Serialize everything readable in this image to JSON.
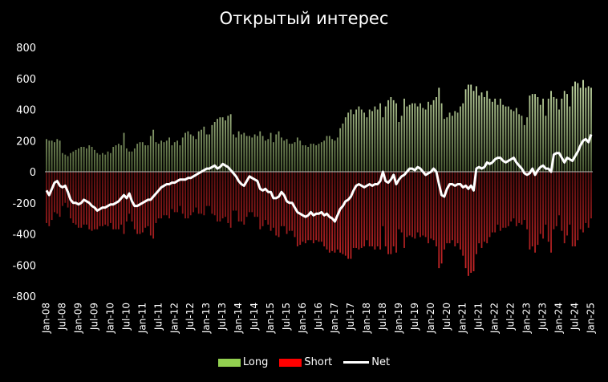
{
  "chart_data": {
    "type": "bar",
    "title": "Открытый интерес",
    "xlabel": "",
    "ylabel": "",
    "ylim": [
      -800,
      800
    ],
    "yticks": [
      "800",
      "600",
      "400",
      "200",
      "0",
      "-200",
      "-400",
      "-600",
      "-800"
    ],
    "ytick_values": [
      800,
      600,
      400,
      200,
      0,
      -200,
      -400,
      -600,
      -800
    ],
    "start": "Jan-08",
    "frequency": "monthly",
    "xtick_labels": [
      "Jan-08",
      "Jul-08",
      "Jan-09",
      "Jul-09",
      "Jan-10",
      "Jul-10",
      "Jan-11",
      "Jul-11",
      "Jan-12",
      "Jul-12",
      "Jan-13",
      "Jul-13",
      "Jan-14",
      "Jul-14",
      "Jan-15",
      "Jul-15",
      "Jan-16",
      "Jul-16",
      "Jan-17",
      "Jul-17",
      "Jan-18",
      "Jul-18",
      "Jan-19",
      "Jul-19",
      "Jan-20",
      "Jul-20",
      "Jan-21",
      "Jul-21",
      "Jan-22",
      "Jul-22",
      "Jan-23",
      "Jul-23",
      "Jan-24",
      "Jul-24",
      "Jan-25"
    ],
    "legend_position": "bottom",
    "colors": {
      "long": "#92d050",
      "short": "#ff0000",
      "net": "#ffffff"
    },
    "series": [
      {
        "name": "Long",
        "type": "bar",
        "values": [
          210,
          200,
          200,
          190,
          210,
          200,
          120,
          110,
          100,
          120,
          130,
          140,
          150,
          160,
          160,
          150,
          170,
          160,
          140,
          120,
          110,
          120,
          110,
          130,
          120,
          160,
          170,
          180,
          170,
          250,
          150,
          130,
          130,
          150,
          180,
          190,
          190,
          170,
          170,
          230,
          270,
          190,
          180,
          200,
          190,
          200,
          220,
          170,
          190,
          200,
          170,
          220,
          250,
          260,
          240,
          230,
          210,
          260,
          270,
          290,
          240,
          240,
          300,
          320,
          340,
          350,
          350,
          330,
          360,
          370,
          240,
          220,
          260,
          240,
          250,
          230,
          230,
          220,
          240,
          230,
          260,
          230,
          200,
          210,
          250,
          190,
          240,
          260,
          220,
          200,
          210,
          180,
          180,
          190,
          220,
          200,
          170,
          170,
          160,
          180,
          180,
          170,
          180,
          190,
          200,
          230,
          230,
          210,
          200,
          220,
          280,
          310,
          350,
          380,
          400,
          370,
          400,
          420,
          400,
          380,
          350,
          400,
          390,
          420,
          400,
          440,
          350,
          420,
          460,
          480,
          460,
          440,
          320,
          360,
          470,
          420,
          430,
          440,
          440,
          420,
          440,
          410,
          400,
          450,
          430,
          460,
          480,
          540,
          440,
          340,
          350,
          380,
          360,
          390,
          380,
          420,
          440,
          530,
          560,
          560,
          520,
          550,
          490,
          510,
          480,
          520,
          470,
          450,
          470,
          430,
          470,
          430,
          420,
          420,
          400,
          390,
          410,
          370,
          360,
          300,
          350,
          490,
          500,
          500,
          480,
          430,
          470,
          360,
          470,
          520,
          480,
          470,
          400,
          470,
          520,
          500,
          420,
          550,
          580,
          570,
          540,
          590,
          540,
          550,
          540
        ]
      },
      {
        "name": "Short",
        "type": "bar",
        "values": [
          -330,
          -350,
          -310,
          -260,
          -270,
          -290,
          -220,
          -200,
          -230,
          -300,
          -330,
          -340,
          -360,
          -360,
          -340,
          -340,
          -370,
          -380,
          -370,
          -370,
          -350,
          -350,
          -340,
          -350,
          -330,
          -370,
          -370,
          -370,
          -340,
          -400,
          -320,
          -270,
          -320,
          -370,
          -400,
          -400,
          -390,
          -360,
          -350,
          -410,
          -430,
          -330,
          -300,
          -300,
          -280,
          -280,
          -300,
          -240,
          -260,
          -260,
          -220,
          -270,
          -300,
          -300,
          -280,
          -260,
          -230,
          -270,
          -270,
          -280,
          -220,
          -220,
          -270,
          -280,
          -320,
          -320,
          -300,
          -290,
          -330,
          -360,
          -250,
          -250,
          -320,
          -320,
          -340,
          -290,
          -260,
          -260,
          -290,
          -290,
          -370,
          -350,
          -310,
          -340,
          -380,
          -360,
          -410,
          -420,
          -350,
          -350,
          -400,
          -380,
          -380,
          -420,
          -480,
          -470,
          -450,
          -460,
          -440,
          -440,
          -460,
          -440,
          -450,
          -450,
          -480,
          -500,
          -520,
          -510,
          -520,
          -500,
          -520,
          -530,
          -540,
          -560,
          -560,
          -490,
          -490,
          -500,
          -490,
          -480,
          -440,
          -480,
          -480,
          -500,
          -480,
          -500,
          -350,
          -480,
          -530,
          -530,
          -480,
          -520,
          -370,
          -390,
          -490,
          -420,
          -410,
          -420,
          -430,
          -390,
          -420,
          -410,
          -420,
          -460,
          -430,
          -440,
          -480,
          -620,
          -590,
          -500,
          -460,
          -460,
          -440,
          -480,
          -460,
          -500,
          -540,
          -620,
          -670,
          -650,
          -640,
          -530,
          -460,
          -490,
          -450,
          -460,
          -420,
          -390,
          -390,
          -340,
          -380,
          -360,
          -360,
          -350,
          -320,
          -300,
          -350,
          -330,
          -340,
          -310,
          -370,
          -500,
          -480,
          -520,
          -470,
          -400,
          -430,
          -340,
          -450,
          -520,
          -370,
          -350,
          -280,
          -380,
          -460,
          -410,
          -340,
          -480,
          -480,
          -440,
          -370,
          -390,
          -330,
          -360,
          -300
        ]
      },
      {
        "name": "Net",
        "type": "line",
        "values": [
          -120,
          -150,
          -110,
          -70,
          -60,
          -90,
          -100,
          -90,
          -130,
          -180,
          -200,
          -200,
          -210,
          -200,
          -180,
          -190,
          -200,
          -220,
          -230,
          -250,
          -240,
          -230,
          -230,
          -220,
          -210,
          -210,
          -200,
          -190,
          -170,
          -150,
          -170,
          -140,
          -190,
          -220,
          -220,
          -210,
          -200,
          -190,
          -180,
          -180,
          -160,
          -140,
          -120,
          -100,
          -90,
          -80,
          -80,
          -70,
          -70,
          -60,
          -50,
          -50,
          -50,
          -40,
          -40,
          -30,
          -20,
          -10,
          0,
          10,
          20,
          20,
          30,
          40,
          20,
          30,
          50,
          40,
          30,
          10,
          -10,
          -30,
          -60,
          -80,
          -90,
          -60,
          -30,
          -40,
          -50,
          -60,
          -110,
          -120,
          -110,
          -130,
          -130,
          -170,
          -170,
          -160,
          -130,
          -150,
          -190,
          -200,
          -200,
          -230,
          -260,
          -270,
          -280,
          -290,
          -280,
          -260,
          -280,
          -270,
          -270,
          -260,
          -280,
          -270,
          -290,
          -300,
          -320,
          -280,
          -240,
          -220,
          -190,
          -180,
          -160,
          -120,
          -90,
          -80,
          -90,
          -100,
          -90,
          -80,
          -90,
          -80,
          -80,
          -60,
          0,
          -60,
          -70,
          -50,
          -20,
          -80,
          -50,
          -30,
          -20,
          0,
          20,
          20,
          10,
          30,
          20,
          0,
          -20,
          -10,
          0,
          20,
          0,
          -80,
          -150,
          -160,
          -110,
          -80,
          -80,
          -90,
          -80,
          -80,
          -100,
          -90,
          -110,
          -90,
          -120,
          20,
          30,
          20,
          30,
          60,
          50,
          60,
          80,
          90,
          90,
          70,
          60,
          70,
          80,
          90,
          60,
          40,
          20,
          -10,
          -20,
          -10,
          20,
          -20,
          10,
          30,
          40,
          20,
          20,
          0,
          110,
          120,
          120,
          90,
          60,
          90,
          80,
          70,
          100,
          130,
          170,
          200,
          210,
          190,
          240
        ]
      }
    ]
  }
}
